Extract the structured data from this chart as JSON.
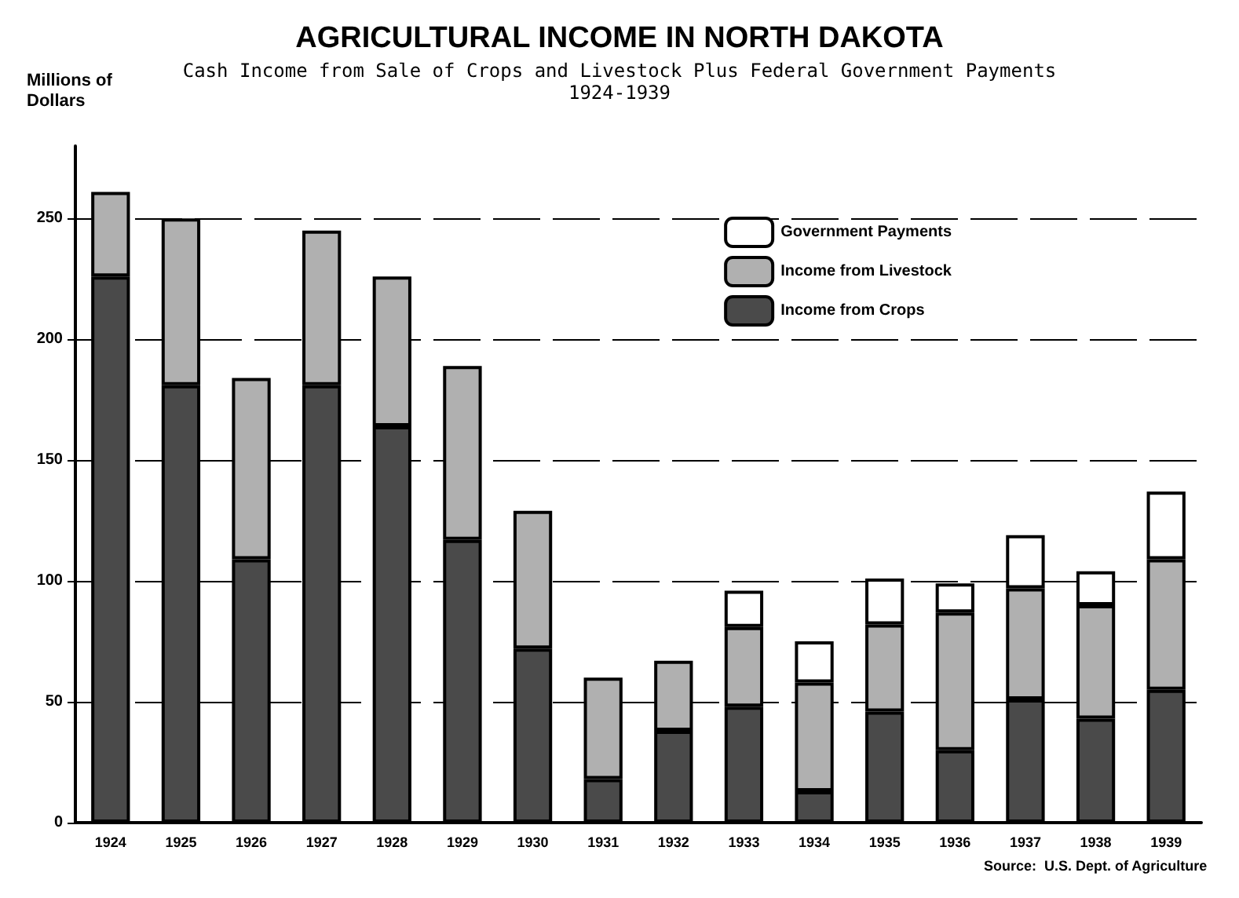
{
  "chart_data": {
    "type": "bar",
    "title": "AGRICULTURAL INCOME IN NORTH DAKOTA",
    "subtitle": "Cash Income from Sale of Crops and Livestock Plus Federal Government Payments\n1924-1939",
    "ylabel": "Millions of\nDollars",
    "annotations": [
      "Source:  U.S. Dept. of Agriculture"
    ],
    "categories": [
      "1924",
      "1925",
      "1926",
      "1927",
      "1928",
      "1929",
      "1930",
      "1931",
      "1932",
      "1933",
      "1934",
      "1935",
      "1936",
      "1937",
      "1938",
      "1939"
    ],
    "stacked": true,
    "ylim": [
      0,
      280
    ],
    "yticks": [
      0,
      50,
      100,
      150,
      200,
      250
    ],
    "grid": "y",
    "legend": "top right",
    "series": [
      {
        "name": "Income from Crops",
        "color": "#4a4a4a",
        "values": [
          226,
          181,
          109,
          181,
          164,
          117,
          72,
          18,
          38,
          48,
          13,
          46,
          30,
          51,
          43,
          55
        ]
      },
      {
        "name": "Income from Livestock",
        "color": "#b0b0b0",
        "values": [
          35,
          69,
          75,
          64,
          62,
          72,
          57,
          42,
          29,
          33,
          45,
          36,
          57,
          46,
          47,
          54
        ]
      },
      {
        "name": "Government Payments",
        "color": "#ffffff",
        "values": [
          null,
          null,
          null,
          null,
          null,
          null,
          null,
          null,
          null,
          15,
          17,
          19,
          12,
          22,
          14,
          28
        ]
      }
    ]
  }
}
